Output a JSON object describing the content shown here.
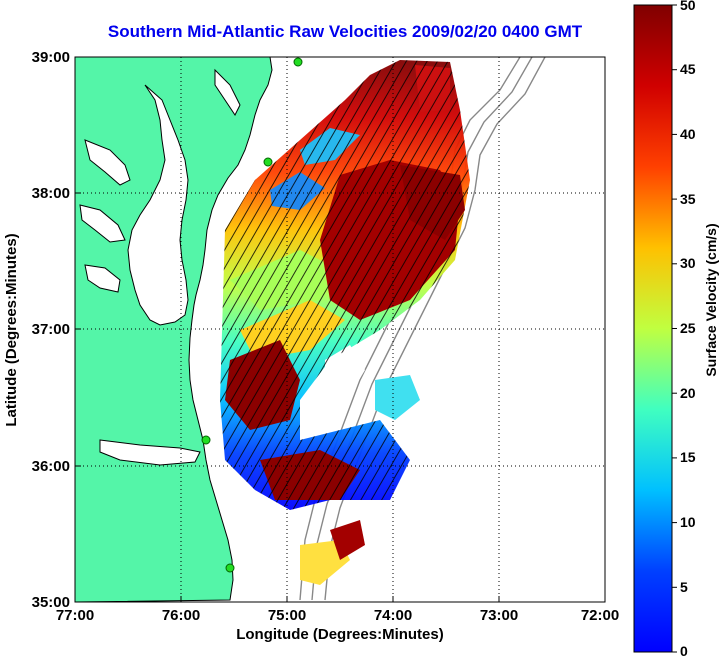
{
  "title": "Southern Mid-Atlantic Raw Velocities 2009/02/20 0400 GMT",
  "axes": {
    "xlabel": "Longitude (Degrees:Minutes)",
    "ylabel": "Latitude (Degrees:Minutes)",
    "x_ticks": [
      "77:00",
      "76:00",
      "75:00",
      "74:00",
      "73:00",
      "72:00"
    ],
    "y_ticks": [
      "39:00",
      "38:00",
      "37:00",
      "36:00",
      "35:00"
    ]
  },
  "colorbar": {
    "label": "Surface Velocity (cm/s)",
    "min": 0,
    "max": 50,
    "ticks": [
      "50",
      "45",
      "40",
      "35",
      "30",
      "25",
      "20",
      "15",
      "10",
      "5",
      "0"
    ]
  },
  "colors": {
    "land": "#54f5a8",
    "title": "#0000ee",
    "grid": "#000000"
  }
}
